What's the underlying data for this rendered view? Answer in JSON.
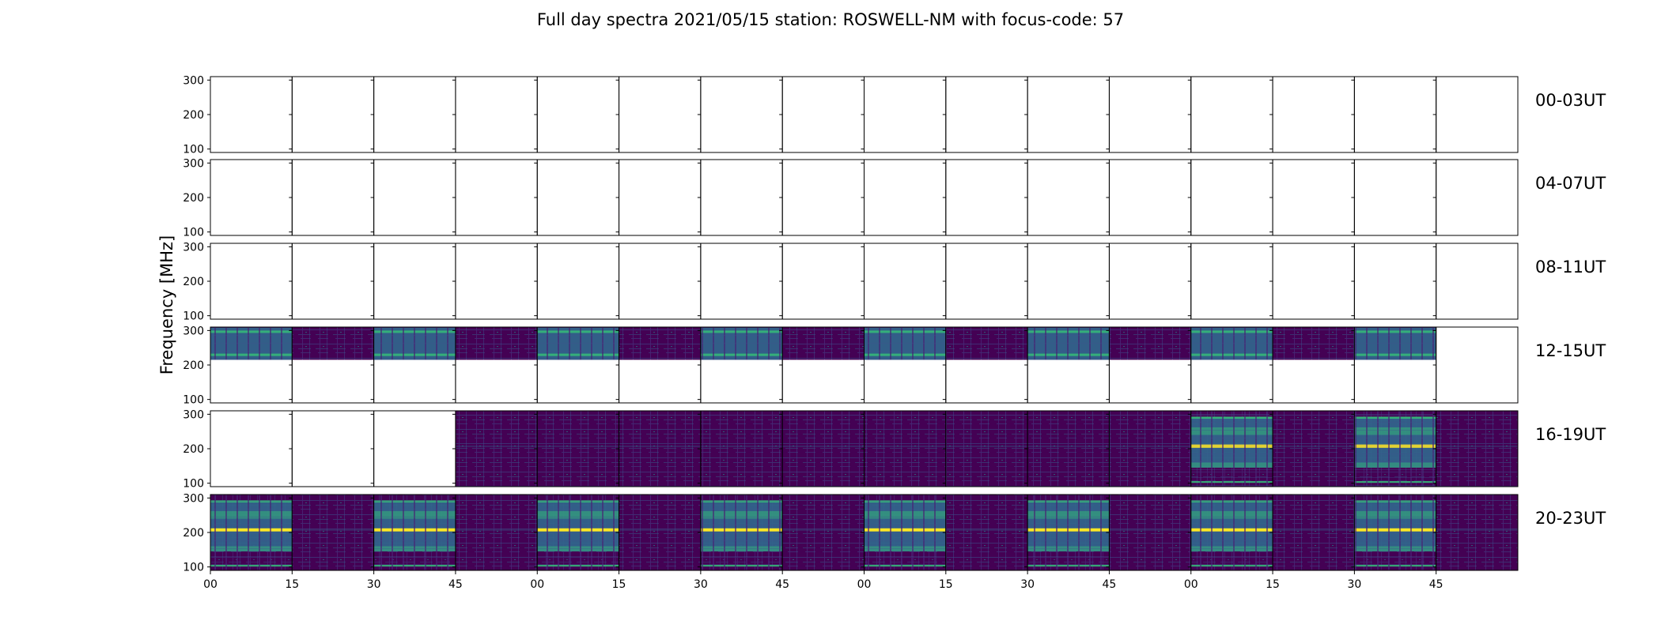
{
  "chart_data": {
    "type": "heatmap",
    "title": "Full day spectra 2021/05/15 station: ROSWELL-NM with focus-code: 57",
    "ylabel": "Frequency [MHz]",
    "ylim": [
      90,
      310
    ],
    "yticks": [
      100,
      200,
      300
    ],
    "xtick_labels": [
      "00",
      "15",
      "30",
      "45",
      "00",
      "15",
      "30",
      "45",
      "00",
      "15",
      "30",
      "45",
      "00",
      "15",
      "30",
      "45"
    ],
    "rows": [
      {
        "label": "00-03UT",
        "cells": [
          "empty",
          "empty",
          "empty",
          "empty",
          "empty",
          "empty",
          "empty",
          "empty",
          "empty",
          "empty",
          "empty",
          "empty",
          "empty",
          "empty",
          "empty",
          "empty"
        ]
      },
      {
        "label": "04-07UT",
        "cells": [
          "empty",
          "empty",
          "empty",
          "empty",
          "empty",
          "empty",
          "empty",
          "empty",
          "empty",
          "empty",
          "empty",
          "empty",
          "empty",
          "empty",
          "empty",
          "empty"
        ]
      },
      {
        "label": "08-11UT",
        "cells": [
          "empty",
          "empty",
          "empty",
          "empty",
          "empty",
          "empty",
          "empty",
          "empty",
          "empty",
          "empty",
          "empty",
          "empty",
          "empty",
          "empty",
          "empty",
          "empty"
        ]
      },
      {
        "label": "12-15UT",
        "cells": [
          "top-striped",
          "top-noise",
          "top-striped",
          "top-noise",
          "top-striped",
          "top-noise",
          "top-striped",
          "top-noise",
          "top-striped",
          "top-noise",
          "top-striped",
          "top-noise",
          "top-striped",
          "top-noise",
          "top-striped",
          "empty"
        ]
      },
      {
        "label": "16-19UT",
        "cells": [
          "empty",
          "empty",
          "empty",
          "noise",
          "noise",
          "noise",
          "noise",
          "noise",
          "noise",
          "noise",
          "noise",
          "noise",
          "striped",
          "noise",
          "striped",
          "noise"
        ]
      },
      {
        "label": "20-23UT",
        "cells": [
          "striped",
          "noise",
          "striped",
          "noise",
          "striped",
          "noise",
          "striped",
          "noise",
          "striped",
          "noise",
          "striped",
          "noise",
          "striped",
          "noise",
          "striped",
          "noise"
        ]
      }
    ],
    "colors": {
      "background": "#440154",
      "noise": "#482475",
      "band_mid": "#31688e",
      "band_bright": "#35b779",
      "peak": "#fde725"
    },
    "grid": false
  }
}
